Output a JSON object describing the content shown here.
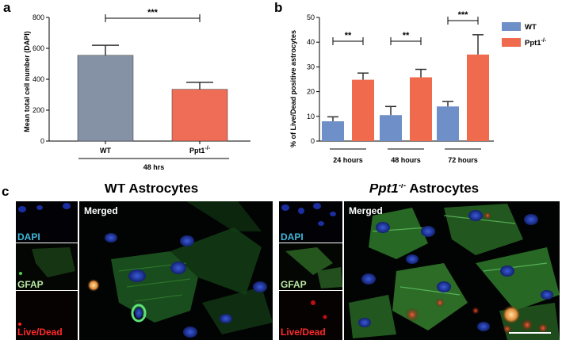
{
  "panels": {
    "a": {
      "letter": "a"
    },
    "b": {
      "letter": "b"
    },
    "c": {
      "letter": "c"
    }
  },
  "chart_data": [
    {
      "type": "bar",
      "ylabel": "Mean total cell number (DAPI)",
      "xlabel": "48 hrs",
      "ylim": [
        0,
        800
      ],
      "yticks": [
        0,
        200,
        400,
        600,
        800
      ],
      "categories": [
        "WT",
        "Ppt1⁻/⁻"
      ],
      "values": [
        555,
        335
      ],
      "errors": [
        65,
        45
      ],
      "colors": [
        "#8592a6",
        "#ef6d57"
      ],
      "significance": [
        {
          "between": [
            0,
            1
          ],
          "label": "***"
        }
      ],
      "grid": false
    },
    {
      "type": "bar",
      "ylabel": "% of Live/Dead positive astrocytes",
      "ylim": [
        0,
        50
      ],
      "yticks": [
        0,
        10,
        20,
        30,
        40,
        50
      ],
      "categories": [
        "24 hours",
        "48 hours",
        "72 hours"
      ],
      "series": [
        {
          "name": "WT",
          "color": "#6f8fc8",
          "values": [
            8,
            10.5,
            14
          ],
          "errors": [
            1.8,
            3.5,
            2
          ]
        },
        {
          "name": "Ppt1⁻/⁻",
          "color": "#f06b4d",
          "values": [
            24.8,
            25.8,
            35
          ],
          "errors": [
            2.7,
            3.2,
            8
          ]
        }
      ],
      "significance": [
        "**",
        "**",
        "***"
      ],
      "legend_position": "top-right",
      "grid": false
    }
  ],
  "microscopy": {
    "wt": {
      "title": "WT Astrocytes",
      "channels": [
        "DAPI",
        "GFAP",
        "Live/Dead"
      ],
      "merged_label": "Merged"
    },
    "ppt1": {
      "title_italic": "Ppt1",
      "title_sup": "-/-",
      "title_rest": " Astrocytes",
      "channels": [
        "DAPI",
        "GFAP",
        "Live/Dead"
      ],
      "merged_label": "Merged"
    },
    "colors": {
      "dapi": "#3fb7d9",
      "gfap": "#b9e6a3",
      "live_dead": "#ff2a2a"
    }
  }
}
